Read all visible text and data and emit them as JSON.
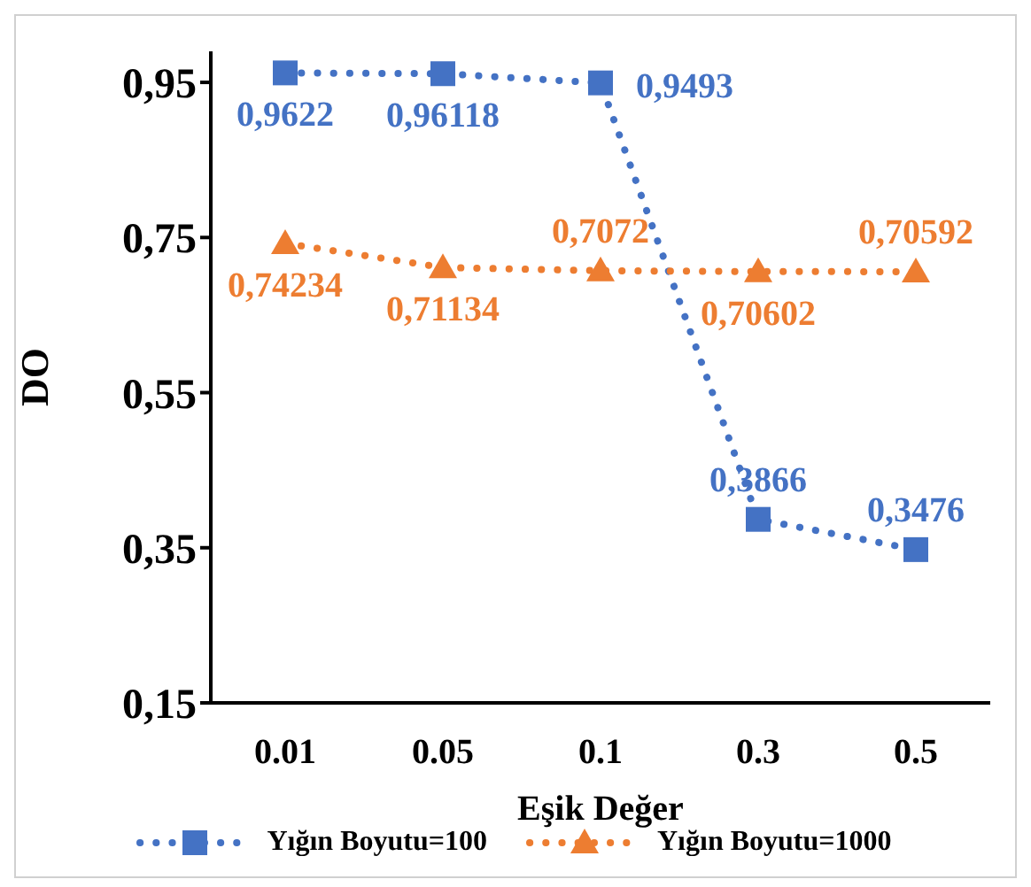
{
  "chart_data": {
    "type": "line",
    "xlabel": "Eşik Değer",
    "ylabel": "DO",
    "categories": [
      "0.01",
      "0.05",
      "0.1",
      "0.3",
      "0.5"
    ],
    "series": [
      {
        "name": "Yığın Boyutu=100",
        "color": "#4472c4",
        "marker": "square",
        "line_style": "dotted",
        "values": [
          0.9622,
          0.96118,
          0.9493,
          0.3866,
          0.3476
        ],
        "value_labels": [
          "0,9622",
          "0,96118",
          "0,9493",
          "0,3866",
          "0,3476"
        ]
      },
      {
        "name": "Yığın Boyutu=1000",
        "color": "#ed7d31",
        "marker": "triangle",
        "line_style": "dotted",
        "values": [
          0.74234,
          0.71134,
          0.7072,
          0.70602,
          0.70592
        ],
        "value_labels": [
          "0,74234",
          "0,71134",
          "0,7072",
          "0,70602",
          "0,70592"
        ]
      }
    ],
    "ylim": [
      0.15,
      0.99
    ],
    "yticks": [
      {
        "value": 0.15,
        "label": "0,15"
      },
      {
        "value": 0.35,
        "label": "0,35"
      },
      {
        "value": 0.55,
        "label": "0,55"
      },
      {
        "value": 0.75,
        "label": "0,75"
      },
      {
        "value": 0.95,
        "label": "0,95"
      }
    ],
    "grid": false,
    "legend": "bottom"
  }
}
